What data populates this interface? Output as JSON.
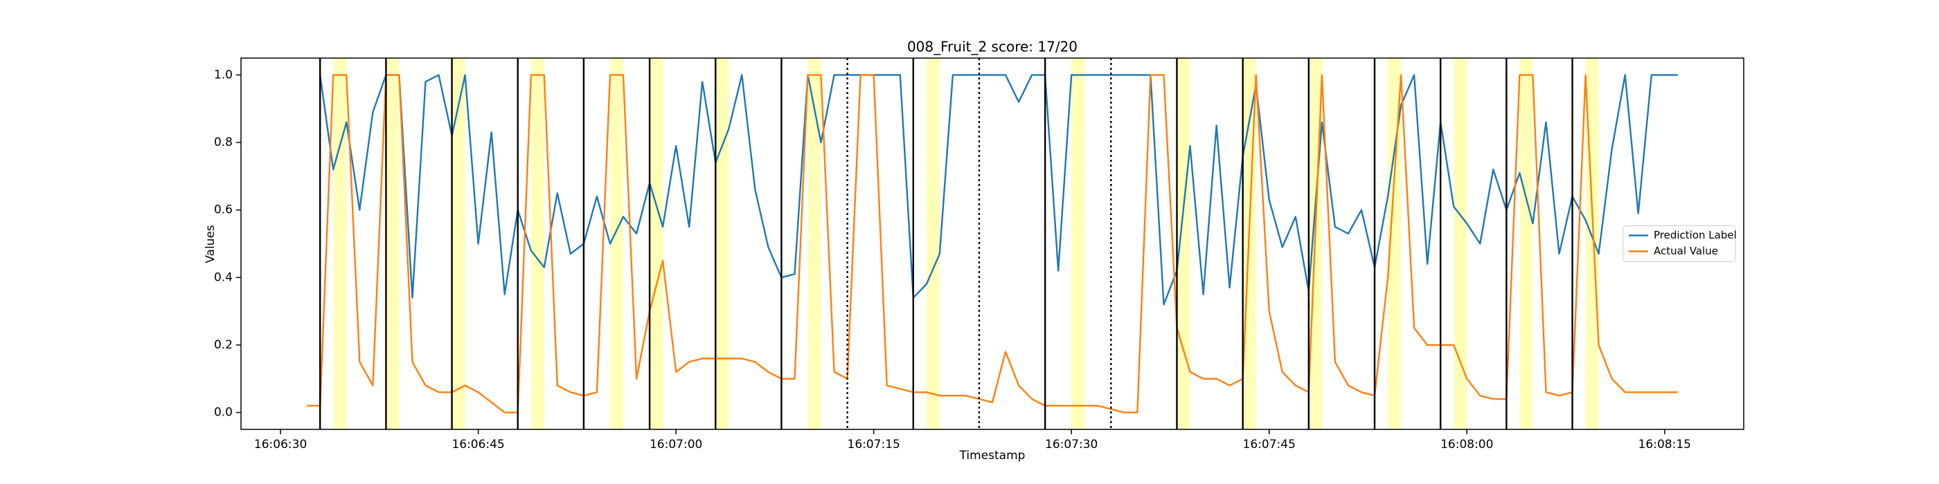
{
  "chart_data": {
    "type": "line",
    "title": "008_Fruit_2 score: 17/20",
    "x_label": "Timestamp",
    "y_label": "Values",
    "x": [
      "16:06:32",
      "16:06:33",
      "16:06:34",
      "16:06:35",
      "16:06:36",
      "16:06:37",
      "16:06:38",
      "16:06:39",
      "16:06:40",
      "16:06:41",
      "16:06:42",
      "16:06:43",
      "16:06:44",
      "16:06:45",
      "16:06:46",
      "16:06:47",
      "16:06:48",
      "16:06:49",
      "16:06:50",
      "16:06:51",
      "16:06:52",
      "16:06:53",
      "16:06:54",
      "16:06:55",
      "16:06:56",
      "16:06:57",
      "16:06:58",
      "16:06:59",
      "16:07:00",
      "16:07:01",
      "16:07:02",
      "16:07:03",
      "16:07:04",
      "16:07:05",
      "16:07:06",
      "16:07:07",
      "16:07:08",
      "16:07:09",
      "16:07:10",
      "16:07:11",
      "16:07:12",
      "16:07:13",
      "16:07:14",
      "16:07:15",
      "16:07:16",
      "16:07:17",
      "16:07:18",
      "16:07:19",
      "16:07:20",
      "16:07:21",
      "16:07:22",
      "16:07:23",
      "16:07:24",
      "16:07:25",
      "16:07:26",
      "16:07:27",
      "16:07:28",
      "16:07:29",
      "16:07:30",
      "16:07:31",
      "16:07:32",
      "16:07:33",
      "16:07:34",
      "16:07:35",
      "16:07:36",
      "16:07:37",
      "16:07:38",
      "16:07:39",
      "16:07:40",
      "16:07:41",
      "16:07:42",
      "16:07:43",
      "16:07:44",
      "16:07:45",
      "16:07:46",
      "16:07:47",
      "16:07:48",
      "16:07:49",
      "16:07:50",
      "16:07:51",
      "16:07:52",
      "16:07:53",
      "16:07:54",
      "16:07:55",
      "16:07:56",
      "16:07:57",
      "16:07:58",
      "16:07:59",
      "16:08:00",
      "16:08:01",
      "16:08:02",
      "16:08:03",
      "16:08:04",
      "16:08:05",
      "16:08:06",
      "16:08:07",
      "16:08:08",
      "16:08:09",
      "16:08:10",
      "16:08:11",
      "16:08:12",
      "16:08:13",
      "16:08:14",
      "16:08:15",
      "16:08:16"
    ],
    "series": [
      {
        "name": "Prediction Label",
        "color": "#1f77b4",
        "values": [
          null,
          1.0,
          0.72,
          0.86,
          0.6,
          0.89,
          1.0,
          1.0,
          0.34,
          0.98,
          1.0,
          0.82,
          1.0,
          0.5,
          0.83,
          0.35,
          0.6,
          0.48,
          0.43,
          0.65,
          0.47,
          0.5,
          0.64,
          0.5,
          0.58,
          0.53,
          0.68,
          0.55,
          0.79,
          0.55,
          0.98,
          0.74,
          0.84,
          1.0,
          0.66,
          0.49,
          0.4,
          0.41,
          1.0,
          0.8,
          1.0,
          1.0,
          1.0,
          1.0,
          1.0,
          1.0,
          0.34,
          0.38,
          0.47,
          1.0,
          1.0,
          1.0,
          1.0,
          1.0,
          0.92,
          1.0,
          1.0,
          0.42,
          1.0,
          1.0,
          1.0,
          1.0,
          1.0,
          1.0,
          1.0,
          0.32,
          0.42,
          0.79,
          0.35,
          0.85,
          0.37,
          0.76,
          0.97,
          0.63,
          0.49,
          0.58,
          0.36,
          0.86,
          0.55,
          0.53,
          0.6,
          0.43,
          0.64,
          0.91,
          1.0,
          0.44,
          0.86,
          0.61,
          0.56,
          0.5,
          0.72,
          0.6,
          0.71,
          0.56,
          0.86,
          0.47,
          0.64,
          0.57,
          0.47,
          0.78,
          1.0,
          0.59,
          1.0,
          1.0,
          1.0
        ]
      },
      {
        "name": "Actual Value",
        "color": "#ff7f0e",
        "values": [
          0.02,
          0.02,
          1.0,
          1.0,
          0.15,
          0.08,
          1.0,
          1.0,
          0.15,
          0.08,
          0.06,
          0.06,
          0.08,
          0.06,
          0.03,
          0.0,
          0.0,
          1.0,
          1.0,
          0.08,
          0.06,
          0.05,
          0.06,
          1.0,
          1.0,
          0.1,
          0.3,
          0.45,
          0.12,
          0.15,
          0.16,
          0.16,
          0.16,
          0.16,
          0.15,
          0.12,
          0.1,
          0.1,
          1.0,
          1.0,
          0.12,
          0.1,
          1.0,
          1.0,
          0.08,
          0.07,
          0.06,
          0.06,
          0.05,
          0.05,
          0.05,
          0.04,
          0.03,
          0.18,
          0.08,
          0.04,
          0.02,
          0.02,
          0.02,
          0.02,
          0.02,
          0.01,
          0.0,
          0.0,
          1.0,
          1.0,
          0.25,
          0.12,
          0.1,
          0.1,
          0.08,
          0.1,
          1.0,
          0.3,
          0.12,
          0.08,
          0.06,
          1.0,
          0.15,
          0.08,
          0.06,
          0.05,
          0.4,
          1.0,
          0.25,
          0.2,
          0.2,
          0.2,
          0.1,
          0.05,
          0.04,
          0.04,
          1.0,
          1.0,
          0.06,
          0.05,
          0.06,
          1.0,
          0.2,
          0.1,
          0.06,
          0.06,
          0.06,
          0.06,
          0.06
        ]
      }
    ],
    "xlim": [
      "16:06:27",
      "16:08:21"
    ],
    "xticks": [
      "16:06:30",
      "16:06:45",
      "16:07:00",
      "16:07:15",
      "16:07:30",
      "16:07:45",
      "16:08:00",
      "16:08:15"
    ],
    "ylim": [
      -0.05,
      1.05
    ],
    "yticks": [
      {
        "value": 0,
        "label": "0.0"
      },
      {
        "value": 0.2,
        "label": "0.2"
      },
      {
        "value": 0.4,
        "label": "0.4"
      },
      {
        "value": 0.6,
        "label": "0.6"
      },
      {
        "value": 0.8,
        "label": "0.8"
      },
      {
        "value": 1,
        "label": "1.0"
      }
    ],
    "vlines": [
      {
        "x": "16:06:33",
        "style": "solid"
      },
      {
        "x": "16:06:38",
        "style": "solid"
      },
      {
        "x": "16:06:43",
        "style": "solid"
      },
      {
        "x": "16:06:48",
        "style": "solid"
      },
      {
        "x": "16:06:53",
        "style": "solid"
      },
      {
        "x": "16:06:58",
        "style": "solid"
      },
      {
        "x": "16:07:03",
        "style": "solid"
      },
      {
        "x": "16:07:08",
        "style": "solid"
      },
      {
        "x": "16:07:13",
        "style": "dotted"
      },
      {
        "x": "16:07:18",
        "style": "solid"
      },
      {
        "x": "16:07:23",
        "style": "dotted"
      },
      {
        "x": "16:07:28",
        "style": "solid"
      },
      {
        "x": "16:07:33",
        "style": "dotted"
      },
      {
        "x": "16:07:38",
        "style": "solid"
      },
      {
        "x": "16:07:43",
        "style": "solid"
      },
      {
        "x": "16:07:48",
        "style": "solid"
      },
      {
        "x": "16:07:53",
        "style": "solid"
      },
      {
        "x": "16:07:58",
        "style": "solid"
      },
      {
        "x": "16:08:03",
        "style": "solid"
      },
      {
        "x": "16:08:08",
        "style": "solid"
      }
    ],
    "vline_color": "#000000",
    "spans": [
      {
        "start": "16:06:34",
        "end": "16:06:35"
      },
      {
        "start": "16:06:38",
        "end": "16:06:39"
      },
      {
        "start": "16:06:43",
        "end": "16:06:44"
      },
      {
        "start": "16:06:49",
        "end": "16:06:50"
      },
      {
        "start": "16:06:55",
        "end": "16:06:56"
      },
      {
        "start": "16:06:58",
        "end": "16:06:59"
      },
      {
        "start": "16:07:03",
        "end": "16:07:04"
      },
      {
        "start": "16:07:10",
        "end": "16:07:11"
      },
      {
        "start": "16:07:19",
        "end": "16:07:20"
      },
      {
        "start": "16:07:30",
        "end": "16:07:31"
      },
      {
        "start": "16:07:38",
        "end": "16:07:39"
      },
      {
        "start": "16:07:43",
        "end": "16:07:44"
      },
      {
        "start": "16:07:48",
        "end": "16:07:49"
      },
      {
        "start": "16:07:54",
        "end": "16:07:55"
      },
      {
        "start": "16:07:59",
        "end": "16:08:00"
      },
      {
        "start": "16:08:04",
        "end": "16:08:05"
      },
      {
        "start": "16:08:09",
        "end": "16:08:10"
      }
    ],
    "span_color": "#ffffb0",
    "legend": "center right"
  }
}
